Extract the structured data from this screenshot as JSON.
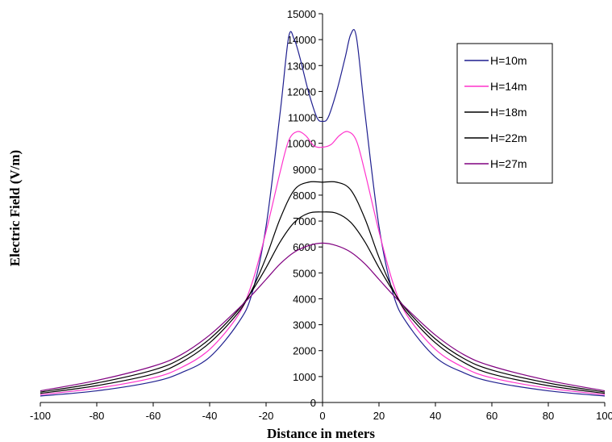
{
  "chart_data": {
    "type": "line",
    "title": "",
    "xlabel": "Distance in meters",
    "ylabel": "Electric Field (V/m)",
    "xlim": [
      -100,
      100
    ],
    "ylim": [
      0,
      15000
    ],
    "x_ticks": [
      -100,
      -80,
      -60,
      -40,
      -20,
      0,
      20,
      40,
      60,
      80,
      100
    ],
    "y_ticks": [
      0,
      1000,
      2000,
      3000,
      4000,
      5000,
      6000,
      7000,
      8000,
      9000,
      10000,
      11000,
      12000,
      13000,
      14000,
      15000
    ],
    "grid": false,
    "legend_position": "top-right",
    "series": [
      {
        "name": "H=10m",
        "color": "#1f1f8f",
        "x": [
          -100,
          -80,
          -60,
          -50,
          -40,
          -30,
          -25,
          -20,
          -15,
          -12,
          -10,
          -8,
          -5,
          -2,
          0,
          2,
          5,
          8,
          10,
          12,
          15,
          20,
          25,
          30,
          40,
          50,
          60,
          80,
          100
        ],
        "y": [
          250,
          450,
          800,
          1150,
          1750,
          3050,
          4200,
          6800,
          11200,
          14100,
          14000,
          13300,
          12000,
          11000,
          10850,
          11000,
          12000,
          13300,
          14200,
          14100,
          11200,
          6800,
          4200,
          3050,
          1750,
          1150,
          800,
          450,
          250
        ]
      },
      {
        "name": "H=14m",
        "color": "#ff33cc",
        "x": [
          -100,
          -80,
          -60,
          -50,
          -40,
          -30,
          -25,
          -20,
          -15,
          -12,
          -9,
          -6,
          -3,
          0,
          3,
          6,
          9,
          12,
          15,
          20,
          25,
          30,
          40,
          50,
          60,
          80,
          100
        ],
        "y": [
          300,
          550,
          950,
          1350,
          2050,
          3350,
          4600,
          6600,
          8900,
          10100,
          10450,
          10300,
          9900,
          9850,
          9950,
          10300,
          10450,
          10100,
          8900,
          6600,
          4600,
          3350,
          2050,
          1350,
          950,
          550,
          300
        ]
      },
      {
        "name": "H=18m",
        "color": "#000000",
        "x": [
          -100,
          -80,
          -60,
          -50,
          -40,
          -30,
          -25,
          -20,
          -15,
          -10,
          -5,
          0,
          5,
          10,
          15,
          20,
          25,
          30,
          40,
          50,
          60,
          80,
          100
        ],
        "y": [
          350,
          650,
          1100,
          1550,
          2300,
          3450,
          4350,
          5600,
          7100,
          8200,
          8500,
          8500,
          8500,
          8200,
          7100,
          5600,
          4350,
          3450,
          2300,
          1550,
          1100,
          650,
          350
        ]
      },
      {
        "name": "H=22m",
        "color": "#000000",
        "x": [
          -100,
          -80,
          -60,
          -50,
          -40,
          -30,
          -25,
          -20,
          -15,
          -10,
          -5,
          0,
          5,
          10,
          15,
          20,
          25,
          30,
          40,
          50,
          60,
          80,
          100
        ],
        "y": [
          400,
          750,
          1250,
          1700,
          2450,
          3550,
          4300,
          5200,
          6200,
          6950,
          7300,
          7350,
          7300,
          6950,
          6200,
          5200,
          4300,
          3550,
          2450,
          1700,
          1250,
          750,
          400
        ]
      },
      {
        "name": "H=27m",
        "color": "#800080",
        "x": [
          -100,
          -80,
          -60,
          -50,
          -40,
          -30,
          -25,
          -20,
          -15,
          -10,
          -5,
          0,
          5,
          10,
          15,
          20,
          25,
          30,
          40,
          50,
          60,
          80,
          100
        ],
        "y": [
          450,
          850,
          1400,
          1850,
          2600,
          3600,
          4150,
          4750,
          5350,
          5800,
          6050,
          6150,
          6050,
          5800,
          5350,
          4750,
          4150,
          3600,
          2600,
          1850,
          1400,
          850,
          450
        ]
      }
    ]
  }
}
